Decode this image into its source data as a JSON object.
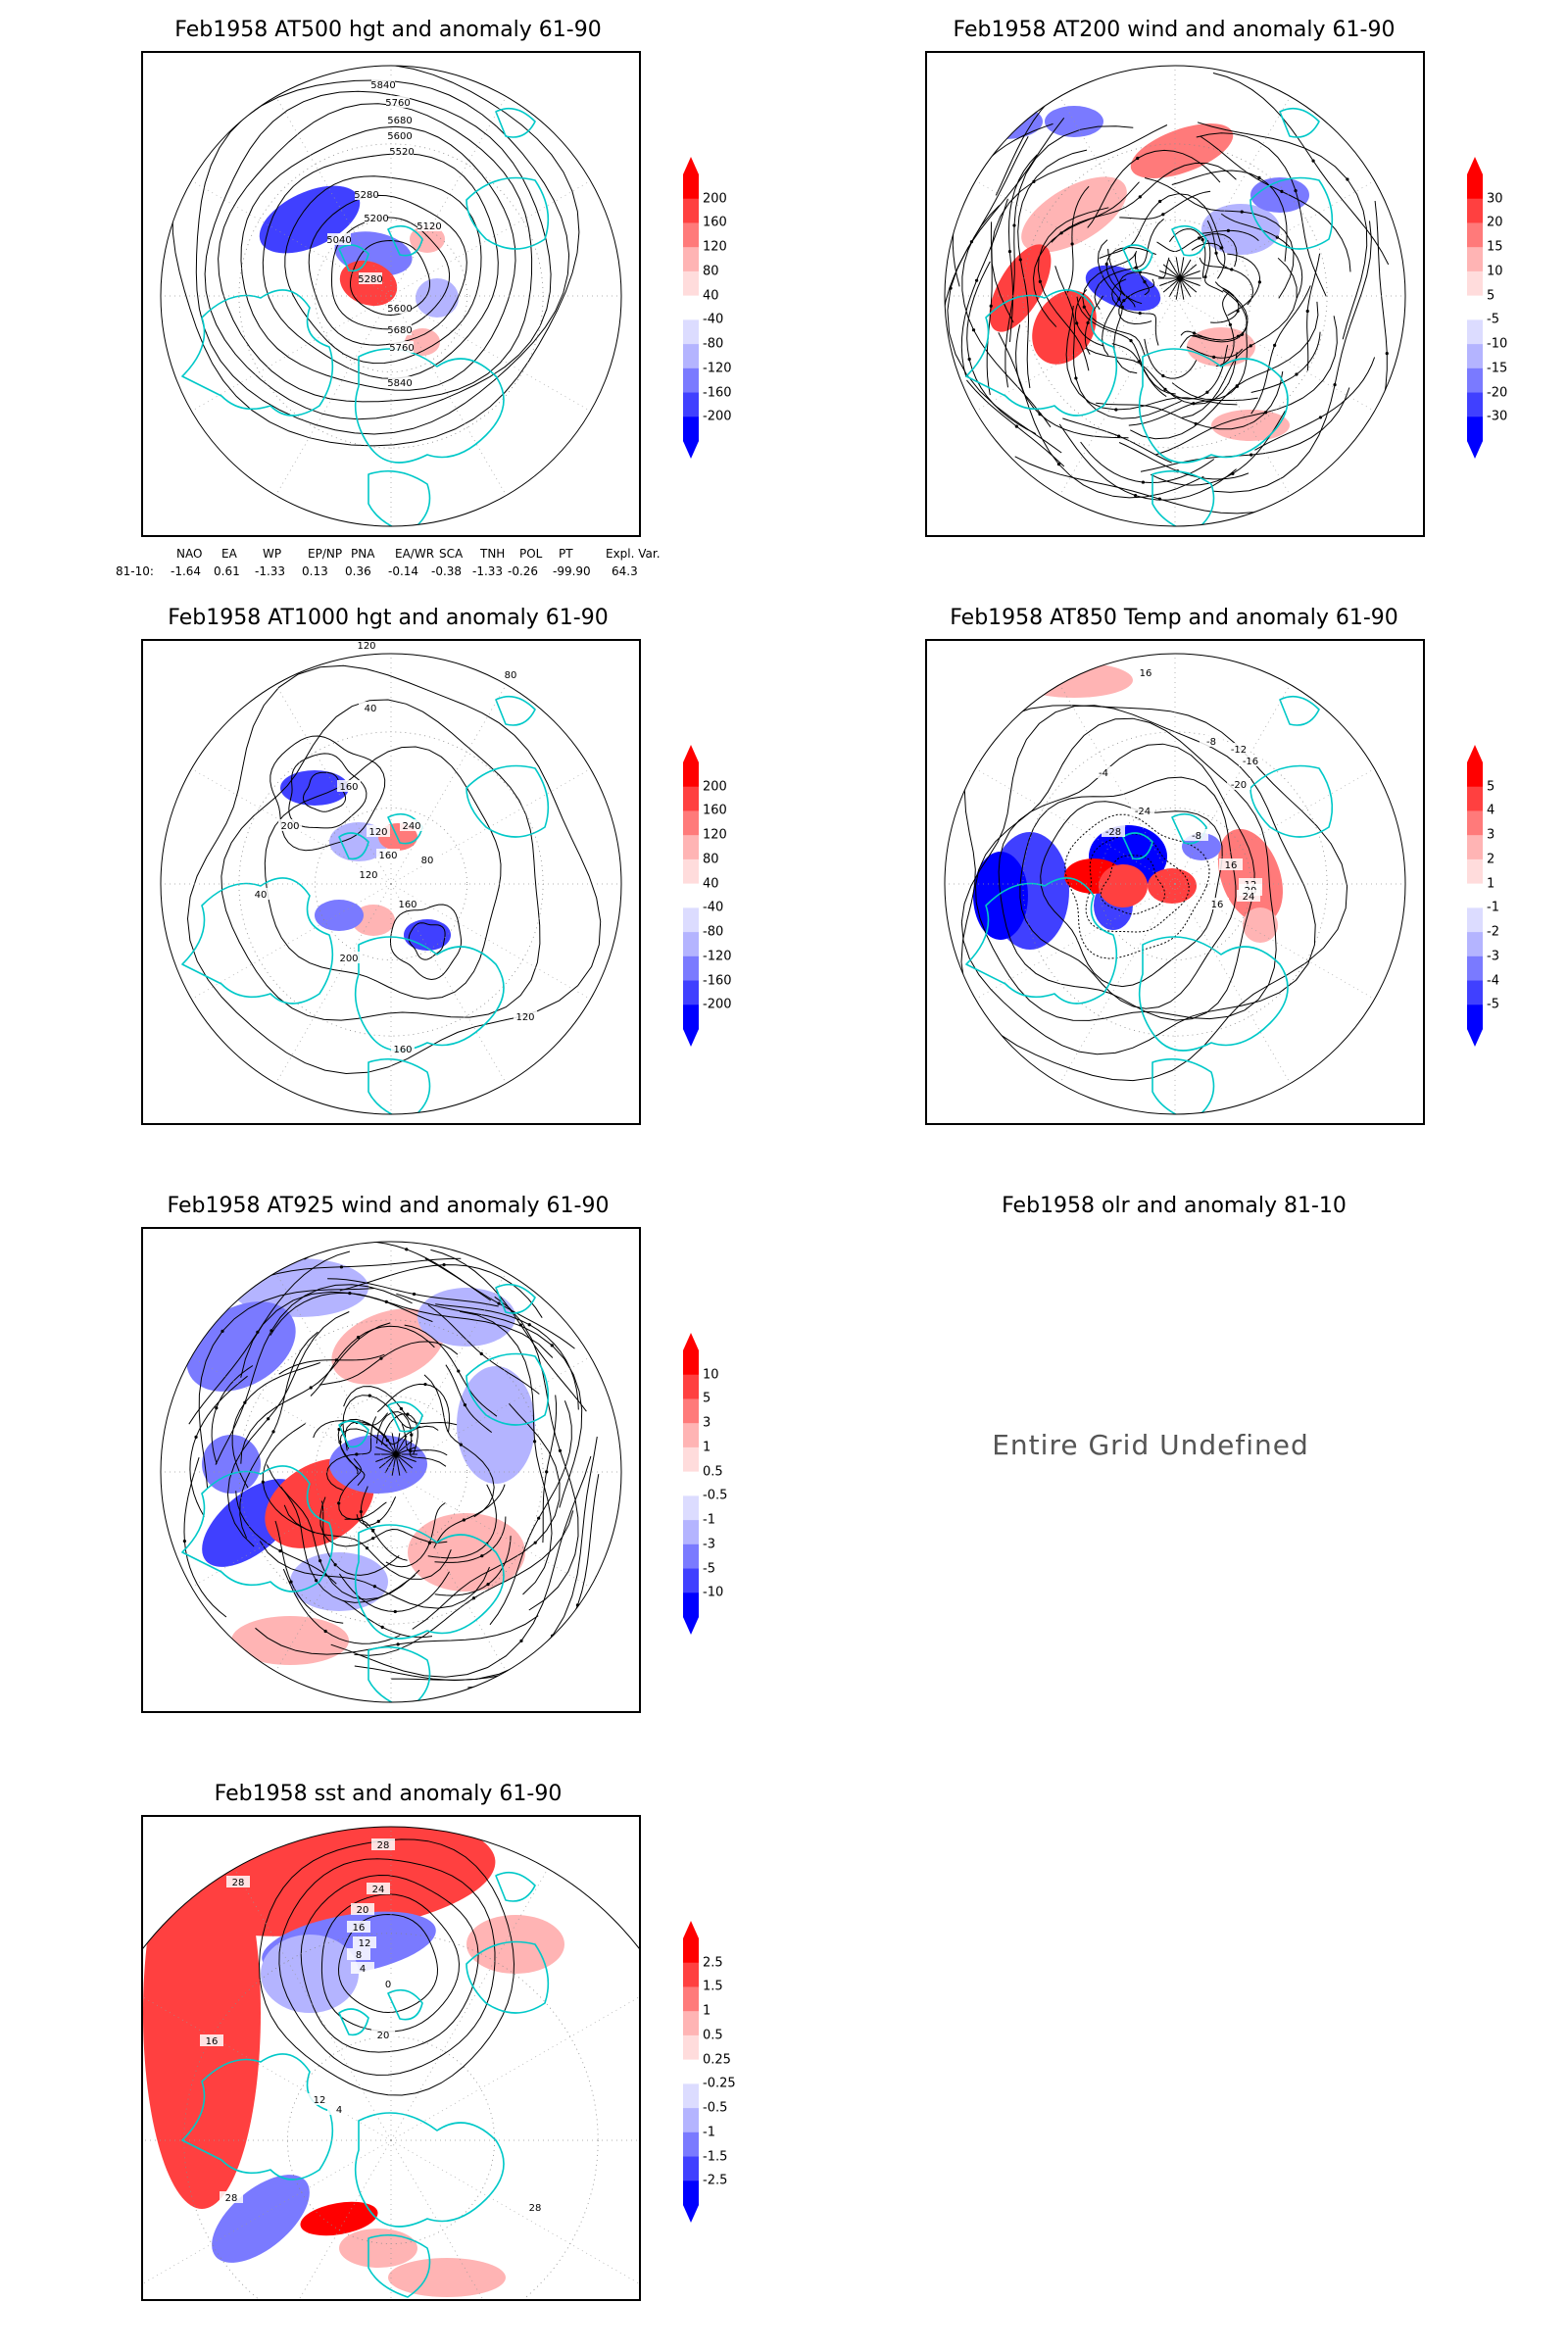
{
  "panels": [
    {
      "id": "p1",
      "title": "Feb1958 AT500 hgt and anomaly 61-90",
      "colorbar": [
        "200",
        "160",
        "120",
        "80",
        "40",
        "-40",
        "-80",
        "-120",
        "-160",
        "-200"
      ],
      "contour_labels": [
        "5840",
        "5760",
        "5680",
        "5600",
        "5520",
        "5280",
        "5200",
        "5120",
        "5040",
        "5280",
        "5600",
        "5680",
        "5760",
        "5840"
      ],
      "theme": "hgt500"
    },
    {
      "id": "p2",
      "title": "Feb1958 AT200 wind and anomaly 61-90",
      "colorbar": [
        "30",
        "20",
        "15",
        "10",
        "5",
        "-5",
        "-10",
        "-15",
        "-20",
        "-30"
      ],
      "contour_labels": [],
      "theme": "wind200"
    },
    {
      "id": "p3",
      "title": "Feb1958 AT1000 hgt and anomaly 61-90",
      "colorbar": [
        "200",
        "160",
        "120",
        "80",
        "40",
        "-40",
        "-80",
        "-120",
        "-160",
        "-200"
      ],
      "contour_labels": [
        "120",
        "80",
        "40",
        "160",
        "200",
        "240",
        "120",
        "160",
        "80",
        "40",
        "120",
        "160",
        "200",
        "120",
        "160"
      ],
      "theme": "hgt1000"
    },
    {
      "id": "p4",
      "title": "Feb1958 AT850 Temp and anomaly 61-90",
      "colorbar": [
        "5",
        "4",
        "3",
        "2",
        "1",
        "-1",
        "-2",
        "-3",
        "-4",
        "-5"
      ],
      "contour_labels": [
        "16",
        "-8",
        "-12",
        "-16",
        "-20",
        "-24",
        "-28",
        "-4",
        "-8",
        "12",
        "16",
        "20",
        "24",
        "16"
      ],
      "theme": "temp850"
    },
    {
      "id": "p5",
      "title": "Feb1958 AT925 wind and anomaly 61-90",
      "colorbar": [
        "10",
        "5",
        "3",
        "1",
        "0.5",
        "-0.5",
        "-1",
        "-3",
        "-5",
        "-10"
      ],
      "contour_labels": [],
      "theme": "wind925"
    },
    {
      "id": "p6",
      "title": "Feb1958 olr and anomaly 81-10",
      "message": "Entire Grid Undefined"
    },
    {
      "id": "p7",
      "title": "Feb1958 sst and anomaly 61-90",
      "colorbar": [
        "2.5",
        "1.5",
        "1",
        "0.5",
        "0.25",
        "-0.25",
        "-0.5",
        "-1",
        "-1.5",
        "-2.5"
      ],
      "contour_labels": [
        "28",
        "24",
        "20",
        "16",
        "12",
        "8",
        "4",
        "0",
        "28",
        "20",
        "16",
        "12",
        "4",
        "28",
        "28"
      ],
      "theme": "sst"
    }
  ],
  "indices": {
    "header": [
      "NAO",
      "EA",
      "WP",
      "EP/NP",
      "PNA",
      "EA/WR",
      "SCA",
      "TNH",
      "POL",
      "PT",
      "Expl. Var."
    ],
    "row_label": "81-10:",
    "values": [
      "-1.64",
      "0.61",
      "-1.33",
      "0.13",
      "0.36",
      "-0.14",
      "-0.38",
      "-1.33",
      "-0.26",
      "-99.90",
      "64.3"
    ]
  },
  "colors": {
    "anomaly_scale": [
      "#ff0000",
      "#ff4040",
      "#ff7a7a",
      "#ffb4b4",
      "#ffdcdc",
      "#ffffff",
      "#dcdcff",
      "#b4b4ff",
      "#7a7aff",
      "#4040ff",
      "#0000ff"
    ],
    "coastline": "#00c8c8",
    "contour": "#000000"
  }
}
